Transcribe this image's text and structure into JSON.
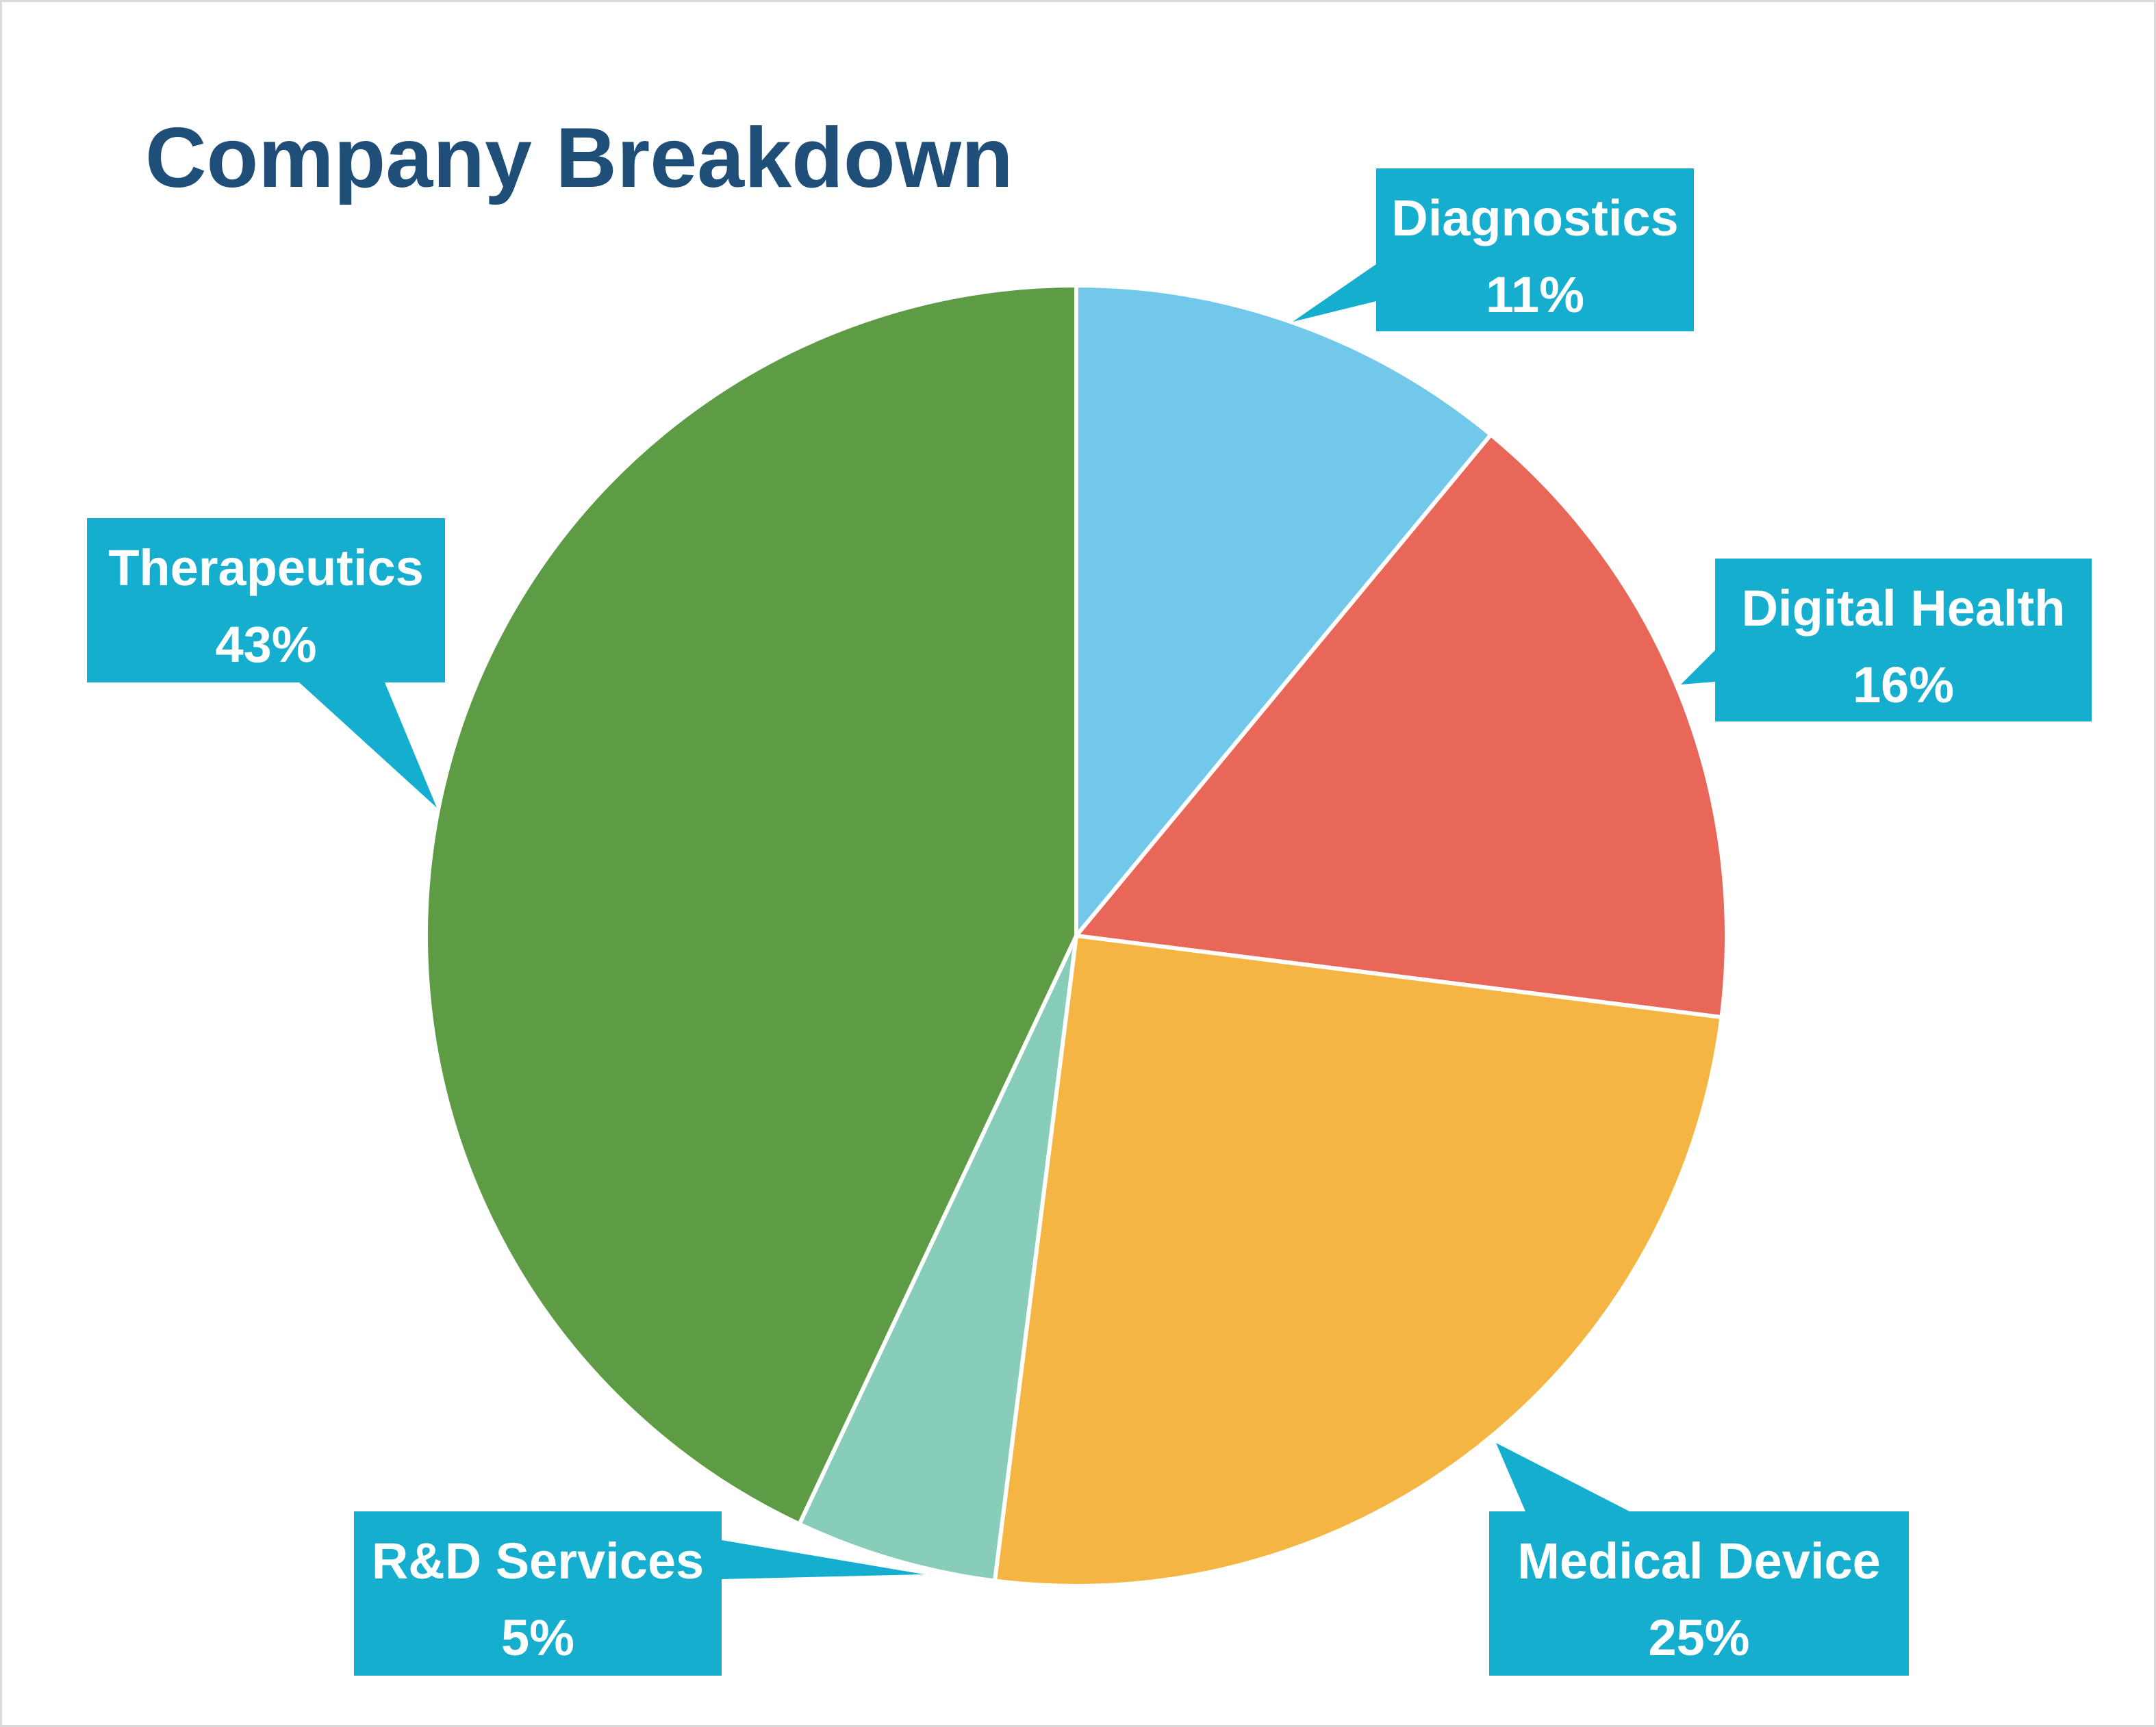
{
  "chart_data": {
    "type": "pie",
    "title": "Company Breakdown",
    "slices": [
      {
        "label": "Diagnostics",
        "value": 11,
        "value_label": "11%",
        "color": "#72c8ea"
      },
      {
        "label": "Digital Health",
        "value": 16,
        "value_label": "16%",
        "color": "#e96758"
      },
      {
        "label": "Medical Device",
        "value": 25,
        "value_label": "25%",
        "color": "#f4b542"
      },
      {
        "label": "R&D Services",
        "value": 5,
        "value_label": "5%",
        "color": "#88cdb9"
      },
      {
        "label": "Therapeutics",
        "value": 43,
        "value_label": "43%",
        "color": "#5d9c45"
      }
    ],
    "start_angle": "12 o'clock",
    "direction": "clockwise",
    "label_style": "callout",
    "callout_color": "#15aece",
    "legend": "none"
  }
}
